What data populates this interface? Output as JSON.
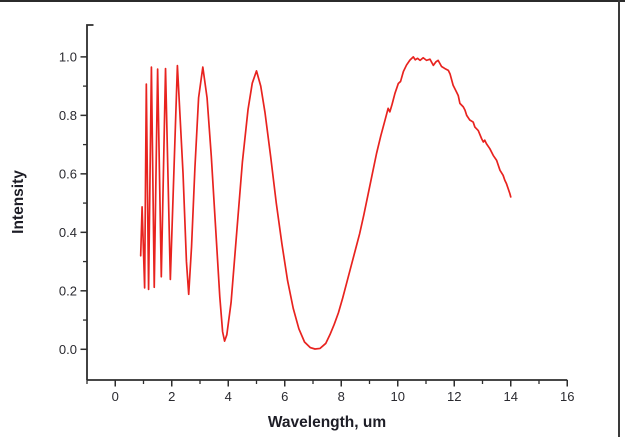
{
  "window": {
    "background": "#ffffff",
    "top_edge_color": "#2b2b2b",
    "right_edge_color": "#3a3a3a"
  },
  "chart_data": {
    "type": "line",
    "title": "",
    "xlabel": "Wavelength, um",
    "ylabel": "Intensity",
    "xlim": [
      -1,
      16
    ],
    "ylim": [
      -0.105,
      1.109
    ],
    "x_major_ticks": [
      0,
      2,
      4,
      6,
      8,
      10,
      12,
      14,
      16
    ],
    "x_minor_ticks": [
      -1,
      1,
      3,
      5,
      7,
      9,
      11,
      13,
      15
    ],
    "y_major_ticks": [
      0.0,
      0.2,
      0.4,
      0.6,
      0.8,
      1.0
    ],
    "y_major_tick_labels": [
      "0.0",
      "0.2",
      "0.4",
      "0.6",
      "0.8",
      "1.0"
    ],
    "y_minor_ticks": [
      0.1,
      0.3,
      0.5,
      0.7,
      0.9
    ],
    "y_axis_end_tick": 1.109,
    "grid": false,
    "legend_position": "none",
    "axis_color": "#2e2e2e",
    "series": [
      {
        "name": "spectrum",
        "color": "#e8231f",
        "line_width": 1.7,
        "points": [
          [
            0.9,
            0.32
          ],
          [
            0.95,
            0.487
          ],
          [
            1.04,
            0.21
          ],
          [
            1.1,
            0.907
          ],
          [
            1.18,
            0.205
          ],
          [
            1.28,
            0.965
          ],
          [
            1.38,
            0.212
          ],
          [
            1.5,
            0.958
          ],
          [
            1.63,
            0.248
          ],
          [
            1.78,
            0.96
          ],
          [
            1.95,
            0.239
          ],
          [
            2.2,
            0.97
          ],
          [
            2.4,
            0.6
          ],
          [
            2.52,
            0.3
          ],
          [
            2.6,
            0.188
          ],
          [
            2.7,
            0.35
          ],
          [
            2.82,
            0.62
          ],
          [
            2.95,
            0.86
          ],
          [
            3.1,
            0.965
          ],
          [
            3.25,
            0.86
          ],
          [
            3.4,
            0.66
          ],
          [
            3.55,
            0.42
          ],
          [
            3.7,
            0.18
          ],
          [
            3.8,
            0.06
          ],
          [
            3.87,
            0.028
          ],
          [
            3.95,
            0.05
          ],
          [
            4.1,
            0.16
          ],
          [
            4.3,
            0.4
          ],
          [
            4.5,
            0.64
          ],
          [
            4.7,
            0.82
          ],
          [
            4.85,
            0.91
          ],
          [
            5.0,
            0.952
          ],
          [
            5.15,
            0.9
          ],
          [
            5.3,
            0.81
          ],
          [
            5.5,
            0.66
          ],
          [
            5.7,
            0.5
          ],
          [
            5.9,
            0.36
          ],
          [
            6.1,
            0.235
          ],
          [
            6.3,
            0.14
          ],
          [
            6.5,
            0.07
          ],
          [
            6.7,
            0.025
          ],
          [
            6.9,
            0.006
          ],
          [
            7.07,
            0.001
          ],
          [
            7.25,
            0.003
          ],
          [
            7.45,
            0.02
          ],
          [
            7.6,
            0.05
          ],
          [
            7.75,
            0.085
          ],
          [
            7.9,
            0.125
          ],
          [
            8.05,
            0.175
          ],
          [
            8.2,
            0.23
          ],
          [
            8.35,
            0.285
          ],
          [
            8.5,
            0.34
          ],
          [
            8.65,
            0.395
          ],
          [
            8.8,
            0.46
          ],
          [
            8.95,
            0.53
          ],
          [
            9.1,
            0.6
          ],
          [
            9.25,
            0.67
          ],
          [
            9.4,
            0.73
          ],
          [
            9.55,
            0.784
          ],
          [
            9.66,
            0.824
          ],
          [
            9.72,
            0.812
          ],
          [
            9.8,
            0.838
          ],
          [
            9.9,
            0.875
          ],
          [
            10.02,
            0.909
          ],
          [
            10.1,
            0.916
          ],
          [
            10.2,
            0.95
          ],
          [
            10.31,
            0.972
          ],
          [
            10.43,
            0.989
          ],
          [
            10.55,
            1.0
          ],
          [
            10.62,
            0.99
          ],
          [
            10.7,
            0.995
          ],
          [
            10.79,
            0.988
          ],
          [
            10.9,
            0.997
          ],
          [
            11.02,
            0.988
          ],
          [
            11.14,
            0.992
          ],
          [
            11.26,
            0.971
          ],
          [
            11.35,
            0.983
          ],
          [
            11.43,
            0.988
          ],
          [
            11.55,
            0.967
          ],
          [
            11.67,
            0.96
          ],
          [
            11.79,
            0.954
          ],
          [
            11.85,
            0.942
          ],
          [
            11.96,
            0.903
          ],
          [
            12.08,
            0.88
          ],
          [
            12.14,
            0.868
          ],
          [
            12.2,
            0.841
          ],
          [
            12.32,
            0.829
          ],
          [
            12.38,
            0.818
          ],
          [
            12.44,
            0.8
          ],
          [
            12.55,
            0.784
          ],
          [
            12.67,
            0.777
          ],
          [
            12.73,
            0.76
          ],
          [
            12.85,
            0.748
          ],
          [
            12.97,
            0.72
          ],
          [
            13.03,
            0.709
          ],
          [
            13.08,
            0.715
          ],
          [
            13.14,
            0.703
          ],
          [
            13.26,
            0.686
          ],
          [
            13.38,
            0.663
          ],
          [
            13.5,
            0.646
          ],
          [
            13.56,
            0.629
          ],
          [
            13.62,
            0.612
          ],
          [
            13.73,
            0.595
          ],
          [
            13.79,
            0.578
          ],
          [
            13.85,
            0.566
          ],
          [
            13.91,
            0.549
          ],
          [
            13.97,
            0.532
          ],
          [
            14.0,
            0.521
          ]
        ]
      }
    ]
  }
}
